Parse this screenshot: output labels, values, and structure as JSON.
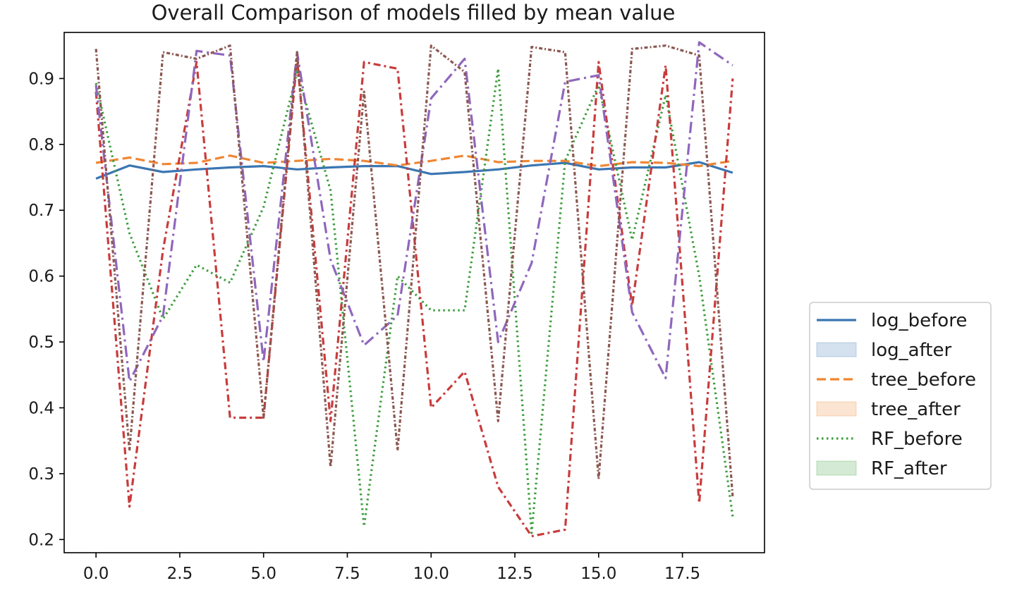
{
  "chart_data": {
    "type": "line",
    "title": "Overall Comparison of models filled by mean value",
    "xlabel": "",
    "ylabel": "",
    "xlim": [
      -0.95,
      19.95
    ],
    "ylim": [
      0.18,
      0.97
    ],
    "x_ticks": [
      0.0,
      2.5,
      5.0,
      7.5,
      10.0,
      12.5,
      15.0,
      17.5
    ],
    "x_tick_labels": [
      "0.0",
      "2.5",
      "5.0",
      "7.5",
      "10.0",
      "12.5",
      "15.0",
      "17.5"
    ],
    "y_ticks": [
      0.2,
      0.3,
      0.4,
      0.5,
      0.6,
      0.7,
      0.8,
      0.9
    ],
    "y_tick_labels": [
      "0.2",
      "0.3",
      "0.4",
      "0.5",
      "0.6",
      "0.7",
      "0.8",
      "0.9"
    ],
    "grid": false,
    "legend_position": "outside-right",
    "x": [
      0,
      1,
      2,
      3,
      4,
      5,
      6,
      7,
      8,
      9,
      10,
      11,
      12,
      13,
      14,
      15,
      16,
      17,
      18,
      19
    ],
    "series": [
      {
        "name": "log_before",
        "color": "#3a76b2",
        "dash": "solid",
        "values": [
          0.748,
          0.768,
          0.758,
          0.762,
          0.765,
          0.767,
          0.762,
          0.765,
          0.767,
          0.767,
          0.755,
          0.758,
          0.762,
          0.768,
          0.772,
          0.762,
          0.765,
          0.765,
          0.773,
          0.757
        ]
      },
      {
        "name": "tree_before",
        "color": "#ef8633",
        "dash": "dashed",
        "values": [
          0.772,
          0.78,
          0.77,
          0.772,
          0.783,
          0.772,
          0.775,
          0.778,
          0.775,
          0.768,
          0.775,
          0.783,
          0.773,
          0.775,
          0.775,
          0.767,
          0.773,
          0.772,
          0.767,
          0.775
        ]
      },
      {
        "name": "RF_before",
        "color": "#3d9e3d",
        "dash": "dotted",
        "values": [
          0.893,
          0.665,
          0.535,
          0.617,
          0.59,
          0.705,
          0.91,
          0.73,
          0.22,
          0.6,
          0.548,
          0.548,
          0.915,
          0.21,
          0.775,
          0.89,
          0.655,
          0.875,
          0.6,
          0.235
        ]
      },
      {
        "name": "",
        "color": "#c83c3c",
        "dash": "dashdot",
        "values": [
          0.88,
          0.25,
          0.64,
          0.925,
          0.385,
          0.385,
          0.93,
          0.38,
          0.925,
          0.915,
          0.4,
          0.455,
          0.28,
          0.205,
          0.215,
          0.925,
          0.555,
          0.92,
          0.255,
          0.9
        ]
      },
      {
        "name": "",
        "color": "#8f67bd",
        "dash": "dashdot2",
        "values": [
          0.89,
          0.44,
          0.54,
          0.942,
          0.935,
          0.47,
          0.94,
          0.625,
          0.495,
          0.54,
          0.87,
          0.93,
          0.5,
          0.62,
          0.895,
          0.905,
          0.545,
          0.445,
          0.955,
          0.92
        ]
      },
      {
        "name": "",
        "color": "#8b5750",
        "dash": "densedashdot",
        "values": [
          0.945,
          0.335,
          0.94,
          0.93,
          0.95,
          0.385,
          0.94,
          0.31,
          0.88,
          0.335,
          0.95,
          0.91,
          0.38,
          0.948,
          0.94,
          0.292,
          0.945,
          0.95,
          0.935,
          0.265
        ]
      }
    ],
    "legend": [
      {
        "label": "log_before",
        "kind": "line",
        "color": "#3a76b2",
        "dash": "solid"
      },
      {
        "label": "log_after",
        "kind": "patch",
        "color": "#3a76b2"
      },
      {
        "label": "tree_before",
        "kind": "line",
        "color": "#ef8633",
        "dash": "dashed"
      },
      {
        "label": "tree_after",
        "kind": "patch",
        "color": "#ef8633"
      },
      {
        "label": "RF_before",
        "kind": "line",
        "color": "#3d9e3d",
        "dash": "dotted"
      },
      {
        "label": "RF_after",
        "kind": "patch",
        "color": "#3d9e3d"
      }
    ]
  }
}
